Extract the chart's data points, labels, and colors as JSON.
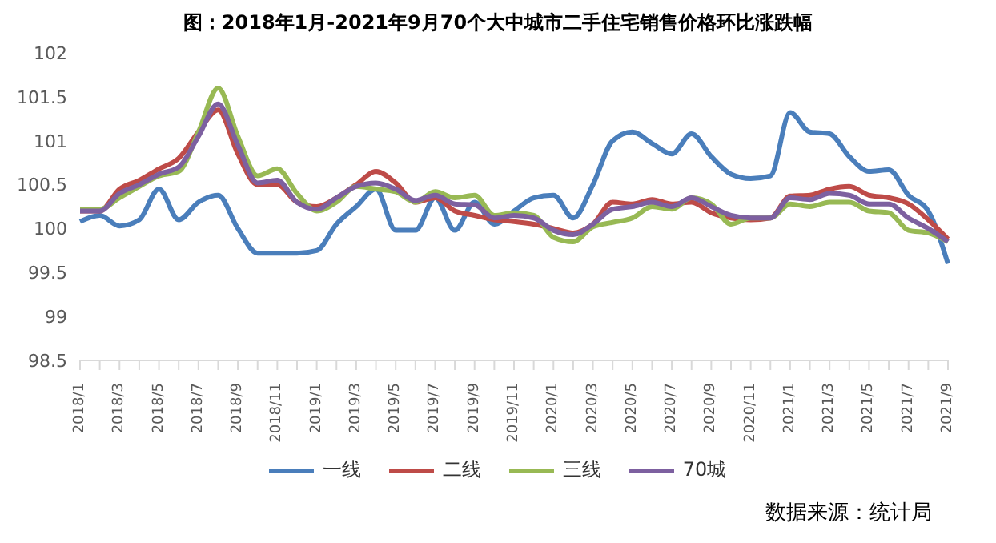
{
  "chart_data": {
    "type": "line",
    "title": "图：2018年1月-2021年9月70个大中城市二手住宅销售价格环比涨跌幅",
    "categories": [
      "2018/1",
      null,
      "2018/3",
      null,
      "2018/5",
      null,
      "2018/7",
      null,
      "2018/9",
      null,
      "2018/11",
      null,
      "2019/1",
      null,
      "2019/3",
      null,
      "2019/5",
      null,
      "2019/7",
      null,
      "2019/9",
      null,
      "2019/11",
      null,
      "2020/1",
      null,
      "2020/3",
      null,
      "2020/5",
      null,
      "2020/7",
      null,
      "2020/9",
      null,
      "2020/11",
      null,
      "2021/1",
      null,
      "2021/3",
      null,
      "2021/5",
      null,
      "2021/7",
      null,
      "2021/9"
    ],
    "series": [
      {
        "name": "一线",
        "color": "#4a7ebb",
        "values": [
          100.08,
          100.15,
          100.03,
          100.1,
          100.45,
          100.1,
          100.3,
          100.38,
          100.0,
          99.72,
          99.72,
          99.72,
          99.75,
          100.05,
          100.25,
          100.45,
          99.98,
          99.98,
          100.35,
          99.98,
          100.3,
          100.05,
          100.2,
          100.35,
          100.38,
          100.12,
          100.5,
          101.0,
          101.1,
          100.97,
          100.85,
          101.08,
          100.82,
          100.62,
          100.57,
          100.6,
          101.32,
          101.1,
          101.08,
          100.82,
          100.65,
          100.67,
          100.38,
          100.2,
          99.6
        ]
      },
      {
        "name": "二线",
        "color": "#be4b48",
        "values": [
          100.2,
          100.2,
          100.45,
          100.55,
          100.68,
          100.8,
          101.1,
          101.35,
          100.85,
          100.5,
          100.5,
          100.3,
          100.25,
          100.35,
          100.5,
          100.65,
          100.52,
          100.3,
          100.35,
          100.2,
          100.15,
          100.1,
          100.08,
          100.05,
          100.0,
          99.95,
          100.05,
          100.3,
          100.28,
          100.33,
          100.28,
          100.3,
          100.18,
          100.12,
          100.1,
          100.12,
          100.37,
          100.38,
          100.45,
          100.48,
          100.38,
          100.35,
          100.28,
          100.1,
          99.88
        ]
      },
      {
        "name": "三线",
        "color": "#98b954",
        "values": [
          100.22,
          100.22,
          100.35,
          100.48,
          100.6,
          100.65,
          101.1,
          101.6,
          101.05,
          100.6,
          100.68,
          100.4,
          100.2,
          100.3,
          100.48,
          100.45,
          100.42,
          100.3,
          100.42,
          100.35,
          100.38,
          100.15,
          100.18,
          100.15,
          99.9,
          99.85,
          100.02,
          100.07,
          100.12,
          100.25,
          100.22,
          100.35,
          100.28,
          100.05,
          100.12,
          100.12,
          100.28,
          100.25,
          100.3,
          100.3,
          100.2,
          100.18,
          99.98,
          99.95,
          99.85
        ]
      },
      {
        "name": "70城",
        "color": "#7d60a0",
        "values": [
          100.2,
          100.2,
          100.4,
          100.5,
          100.62,
          100.7,
          101.05,
          101.42,
          100.95,
          100.52,
          100.55,
          100.3,
          100.22,
          100.35,
          100.48,
          100.52,
          100.45,
          100.32,
          100.38,
          100.28,
          100.27,
          100.12,
          100.15,
          100.12,
          99.98,
          99.93,
          100.05,
          100.22,
          100.25,
          100.3,
          100.25,
          100.35,
          100.25,
          100.15,
          100.12,
          100.12,
          100.35,
          100.33,
          100.4,
          100.38,
          100.28,
          100.28,
          100.12,
          100.0,
          99.85
        ]
      }
    ],
    "ylim": [
      98.5,
      102
    ],
    "yticks": [
      98.5,
      99,
      99.5,
      100,
      100.5,
      101,
      101.5,
      102
    ],
    "legend": "bottom",
    "marker": "none",
    "line_style": "solid",
    "annotations": [
      "数据来源：统计局"
    ]
  }
}
